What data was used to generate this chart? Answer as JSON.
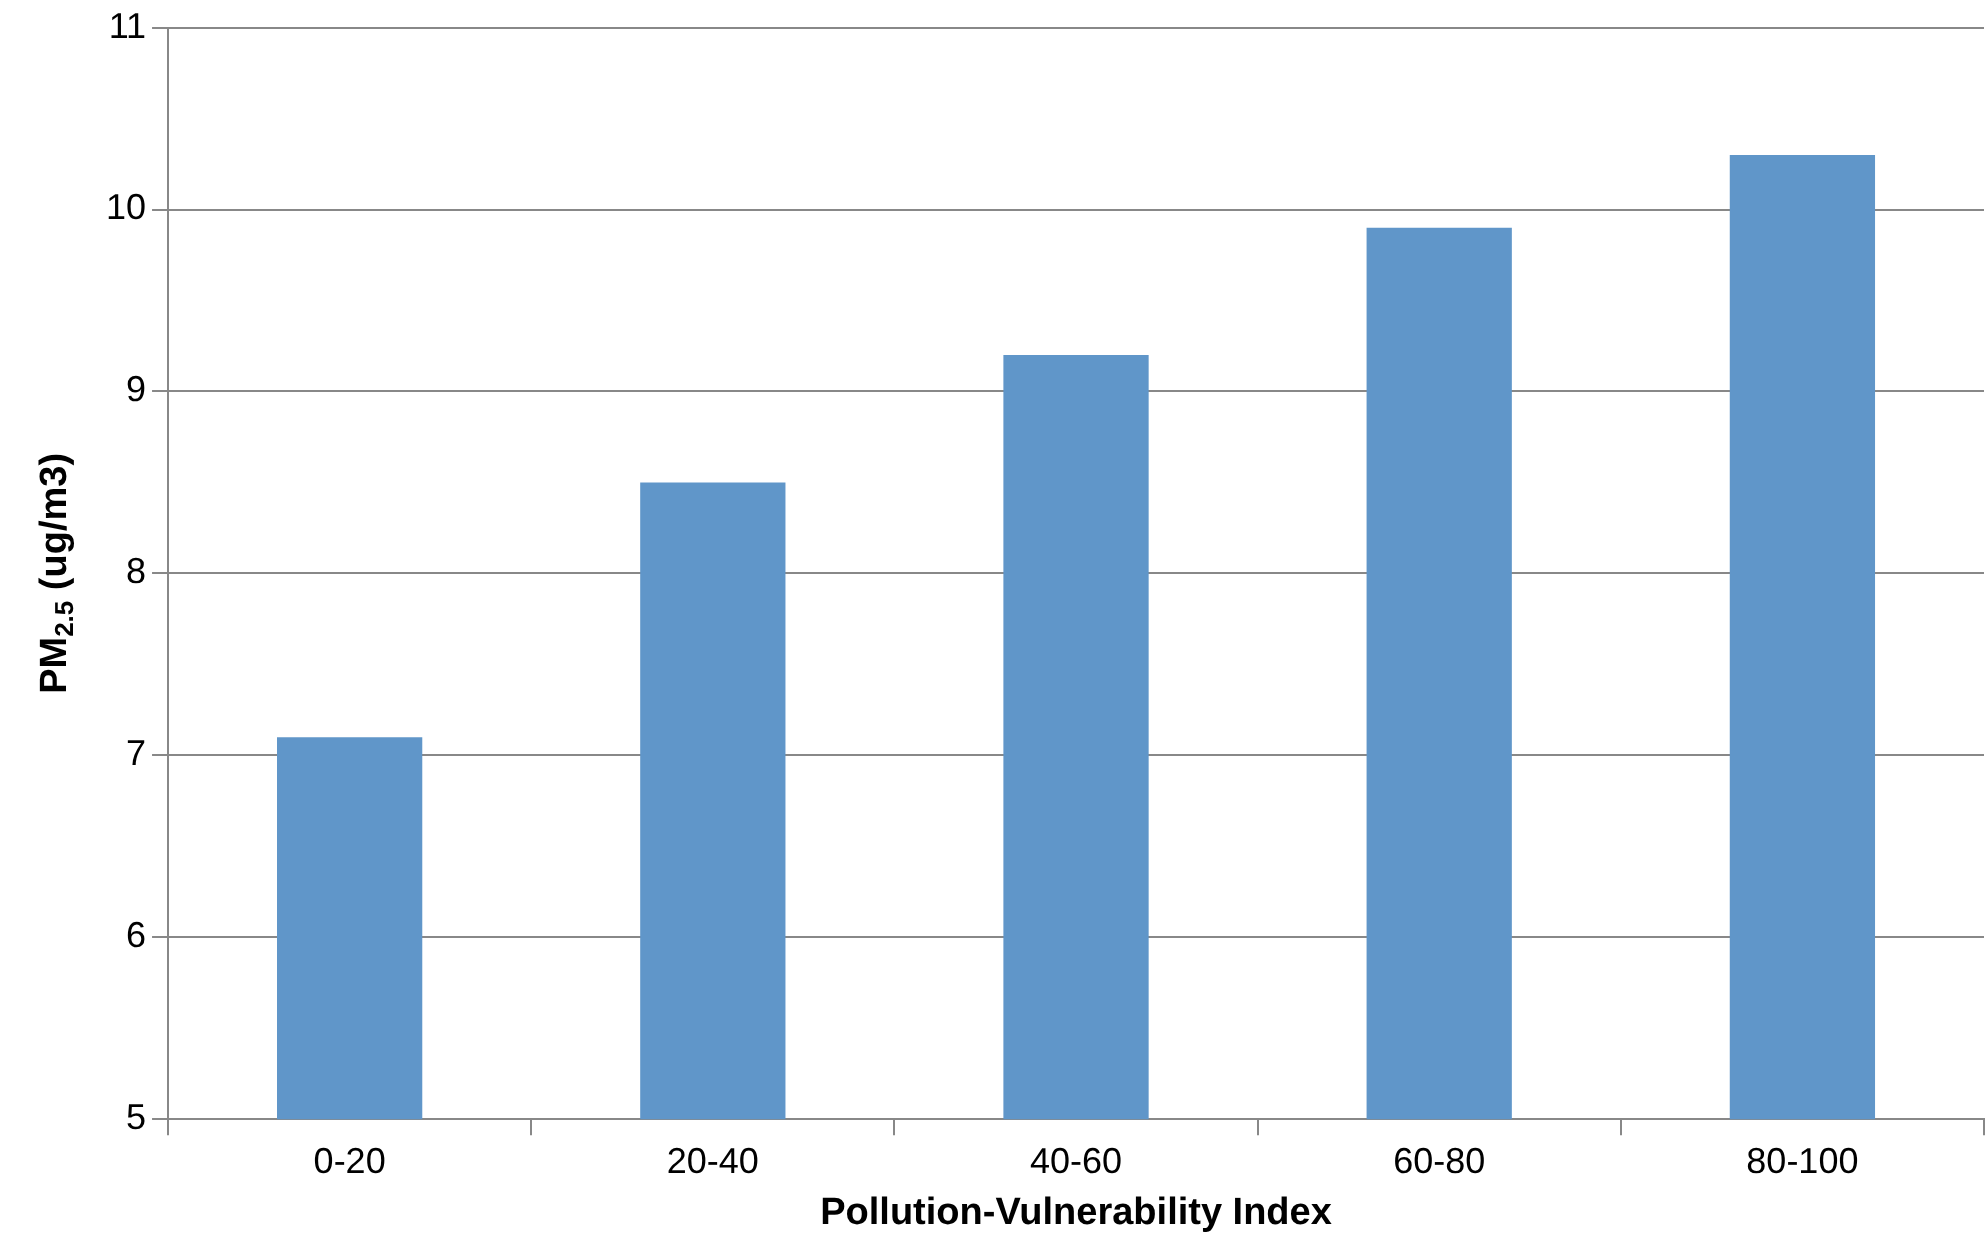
{
  "chart_data": {
    "type": "bar",
    "xlabel": "Pollution-Vulnerability Index",
    "ylabel": "PM$_{2.5}$ (ug/m3)",
    "categories": [
      "0-20",
      "20-40",
      "40-60",
      "60-80",
      "80-100"
    ],
    "values": [
      7.1,
      8.5,
      9.2,
      9.9,
      10.3
    ],
    "color": "#6096c9",
    "ylim": [
      5,
      11
    ],
    "yticks": [
      5,
      6,
      7,
      8,
      9,
      10,
      11
    ],
    "grid": "y",
    "legend": false
  }
}
